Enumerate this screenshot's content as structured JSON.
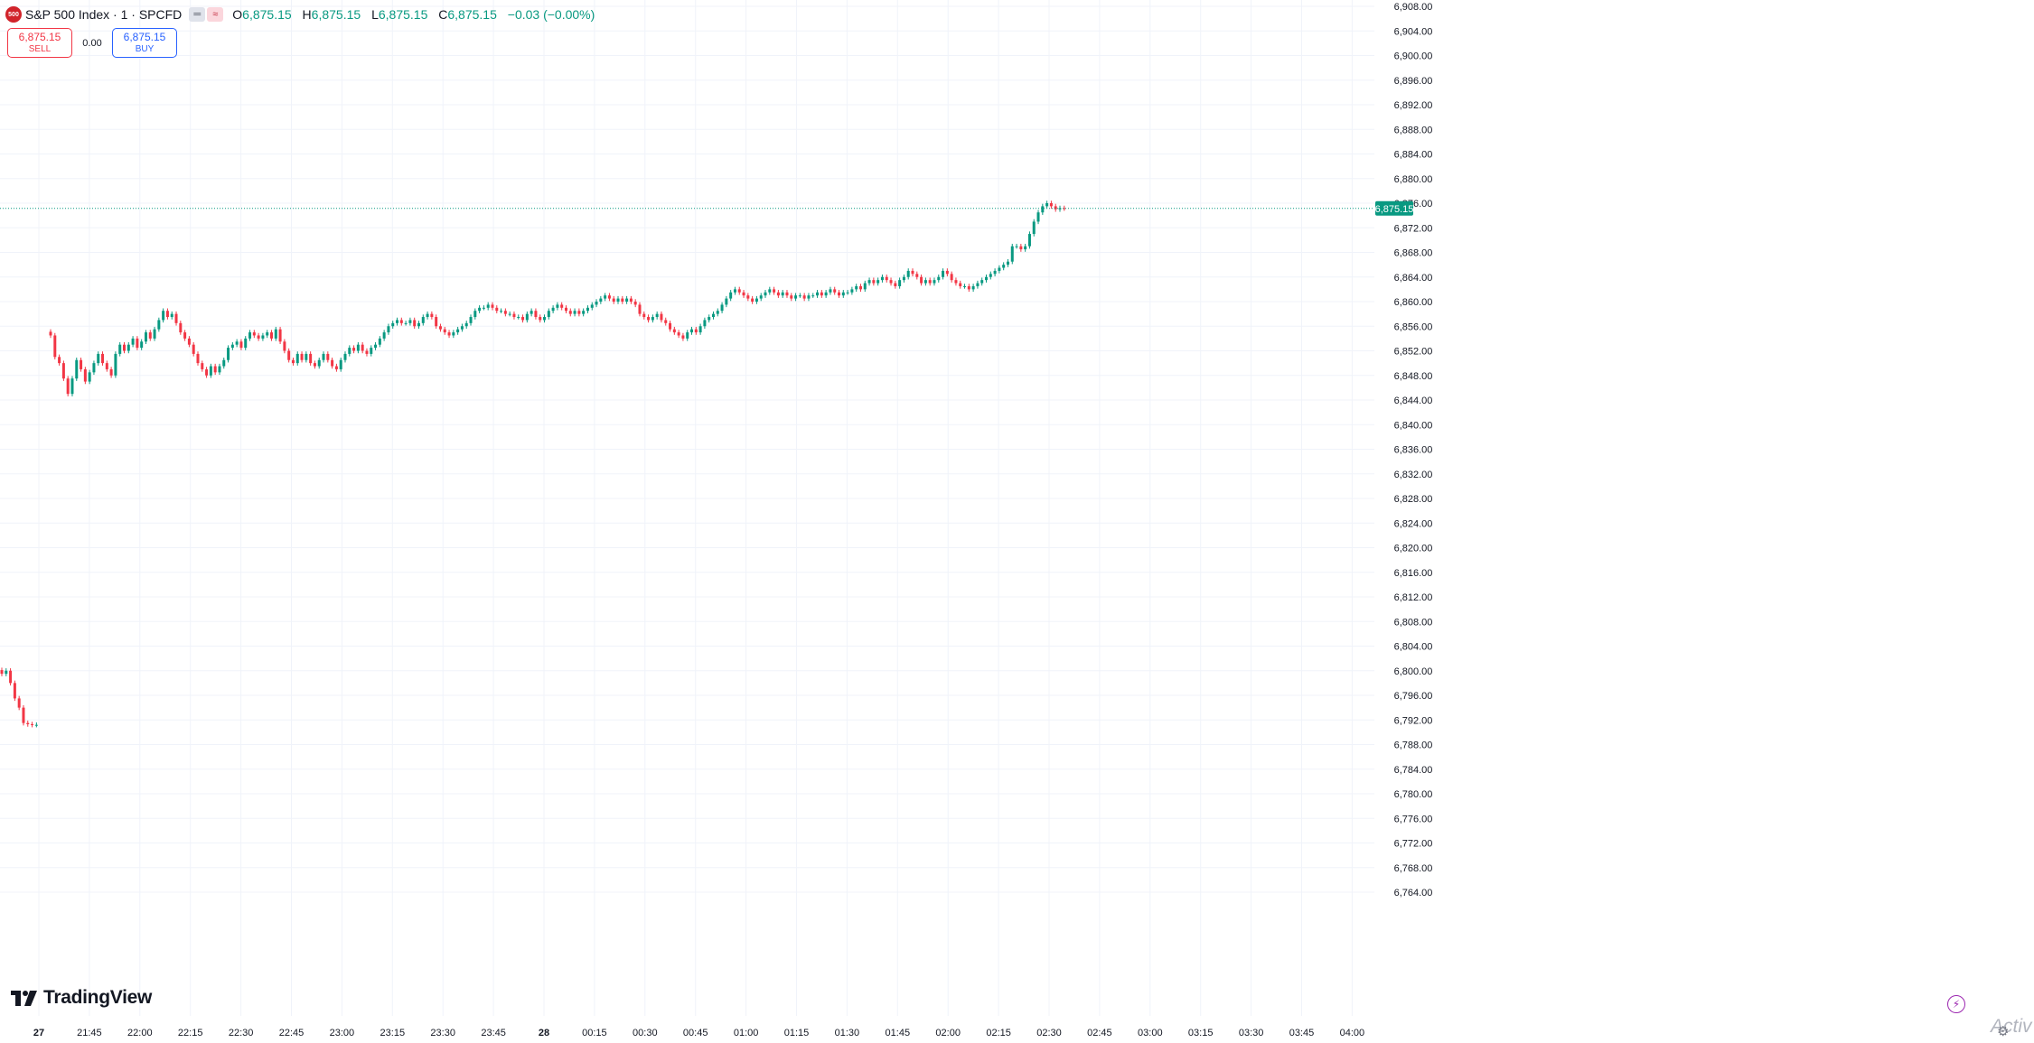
{
  "header": {
    "badge_text": "500",
    "symbol_title": "S&P 500 Index · 1 · SPCFD",
    "mini_btn_1": "═",
    "mini_btn_2": "≈",
    "ohlc": {
      "o_label": "O",
      "o_value": "6,875.15",
      "h_label": "H",
      "h_value": "6,875.15",
      "l_label": "L",
      "l_value": "6,875.15",
      "c_label": "C",
      "c_value": "6,875.15",
      "change": "−0.03 (−0.00%)"
    }
  },
  "trade": {
    "sell_price": "6,875.15",
    "sell_label": "SELL",
    "spread": "0.00",
    "buy_price": "6,875.15",
    "buy_label": "BUY"
  },
  "branding": {
    "name": "TradingView",
    "watermark": "Activ"
  },
  "icons": {
    "bolt": "lightning-icon",
    "gear": "gear-icon",
    "logo": "tradingview-logo-icon"
  },
  "colors": {
    "up": "#089981",
    "down": "#f23645",
    "grid": "#f0f3fa",
    "axis_text": "#131722",
    "price_tag_bg": "#089981"
  },
  "chart_data": {
    "type": "candlestick",
    "title": "S&P 500 Index · 1 · SPCFD",
    "interval": "1 minute",
    "ylim": [
      6762,
      6908
    ],
    "y_ticks": [
      "6,908.00",
      "6,904.00",
      "6,900.00",
      "6,896.00",
      "6,892.00",
      "6,888.00",
      "6,884.00",
      "6,880.00",
      "6,876.00",
      "6,872.00",
      "6,868.00",
      "6,864.00",
      "6,860.00",
      "6,856.00",
      "6,852.00",
      "6,848.00",
      "6,844.00",
      "6,840.00",
      "6,836.00",
      "6,832.00",
      "6,828.00",
      "6,824.00",
      "6,820.00",
      "6,816.00",
      "6,812.00",
      "6,808.00",
      "6,804.00",
      "6,800.00",
      "6,796.00",
      "6,792.00",
      "6,788.00",
      "6,784.00",
      "6,780.00",
      "6,776.00",
      "6,772.00",
      "6,768.00",
      "6,764.00"
    ],
    "x_ticks": [
      "27",
      "21:45",
      "22:00",
      "22:15",
      "22:30",
      "22:45",
      "23:00",
      "23:15",
      "23:30",
      "23:45",
      "28",
      "00:15",
      "00:30",
      "00:45",
      "01:00",
      "01:15",
      "01:30",
      "01:45",
      "02:00",
      "02:15",
      "02:30",
      "02:45",
      "03:00",
      "03:15",
      "03:30",
      "03:45",
      "04:00"
    ],
    "bold_x_ticks": [
      "27",
      "28"
    ],
    "last_price": "6,875.15",
    "last_price_value": 6875.15,
    "session_start": "27 21:30",
    "series": [
      {
        "segment": "prior session",
        "start": "27 21:22",
        "closes": [
          6799.5,
          6800.0,
          6798.0,
          6795.5,
          6794.0,
          6791.5,
          6791.3,
          6791.2,
          6791.2
        ]
      },
      {
        "segment": "current session",
        "start": "27 21:30",
        "closes": [
          6854.5,
          6851.0,
          6850.0,
          6847.5,
          6845.0,
          6847.5,
          6850.5,
          6849.0,
          6847.0,
          6848.5,
          6850.0,
          6851.5,
          6850.0,
          6849.0,
          6848.0,
          6851.5,
          6853.0,
          6852.0,
          6853.0,
          6854.0,
          6852.5,
          6853.5,
          6855.0,
          6854.0,
          6855.5,
          6857.0,
          6858.5,
          6857.5,
          6858.0,
          6856.5,
          6855.0,
          6854.0,
          6853.0,
          6851.5,
          6850.0,
          6849.0,
          6848.0,
          6849.5,
          6848.5,
          6849.5,
          6850.5,
          6852.5,
          6853.0,
          6853.5,
          6852.5,
          6854.0,
          6855.0,
          6854.5,
          6854.0,
          6854.5,
          6855.0,
          6854.0,
          6855.5,
          6853.5,
          6852.0,
          6850.5,
          6850.0,
          6851.5,
          6850.5,
          6851.5,
          6850.0,
          6849.5,
          6850.5,
          6851.5,
          6850.5,
          6849.5,
          6849.0,
          6850.5,
          6851.5,
          6852.5,
          6852.0,
          6853.0,
          6852.0,
          6851.5,
          6852.5,
          6853.0,
          6854.0,
          6855.0,
          6856.0,
          6856.5,
          6857.0,
          6856.5,
          6856.5,
          6857.0,
          6856.0,
          6856.5,
          6857.5,
          6858.0,
          6857.5,
          6856.0,
          6855.5,
          6855.0,
          6854.5,
          6855.0,
          6855.5,
          6856.0,
          6856.5,
          6857.5,
          6858.5,
          6859.0,
          6859.0,
          6859.5,
          6859.0,
          6858.5,
          6858.5,
          6858.0,
          6858.0,
          6857.5,
          6857.5,
          6857.0,
          6858.0,
          6858.5,
          6857.5,
          6857.0,
          6857.5,
          6858.5,
          6859.0,
          6859.5,
          6859.0,
          6858.5,
          6858.0,
          6858.5,
          6858.0,
          6858.5,
          6859.0,
          6859.5,
          6860.0,
          6860.5,
          6861.0,
          6860.5,
          6860.0,
          6860.5,
          6860.0,
          6860.5,
          6860.0,
          6859.5,
          6858.0,
          6857.5,
          6857.0,
          6857.5,
          6858.0,
          6857.0,
          6856.5,
          6855.5,
          6855.0,
          6854.5,
          6854.0,
          6855.0,
          6855.5,
          6855.0,
          6856.0,
          6857.0,
          6857.5,
          6858.0,
          6858.5,
          6859.5,
          6860.5,
          6861.5,
          6862.0,
          6861.5,
          6861.0,
          6860.5,
          6860.0,
          6860.5,
          6861.0,
          6861.5,
          6862.0,
          6861.5,
          6861.0,
          6861.5,
          6861.0,
          6860.5,
          6861.0,
          6861.0,
          6860.5,
          6861.0,
          6861.0,
          6861.5,
          6861.0,
          6861.5,
          6862.0,
          6861.5,
          6861.0,
          6861.5,
          6861.5,
          6862.0,
          6862.5,
          6862.0,
          6863.0,
          6863.5,
          6863.0,
          6863.5,
          6864.0,
          6863.5,
          6863.0,
          6862.5,
          6863.5,
          6864.0,
          6865.0,
          6864.5,
          6864.0,
          6863.0,
          6863.5,
          6863.0,
          6863.5,
          6864.0,
          6865.0,
          6864.5,
          6863.5,
          6863.0,
          6862.5,
          6862.5,
          6862.0,
          6862.5,
          6863.0,
          6863.5,
          6864.0,
          6864.5,
          6865.0,
          6865.5,
          6866.0,
          6866.5,
          6869.0,
          6869.0,
          6868.5,
          6869.0,
          6871.0,
          6873.0,
          6874.5,
          6875.5,
          6876.0,
          6875.5,
          6875.0,
          6875.2,
          6875.15
        ]
      }
    ]
  }
}
